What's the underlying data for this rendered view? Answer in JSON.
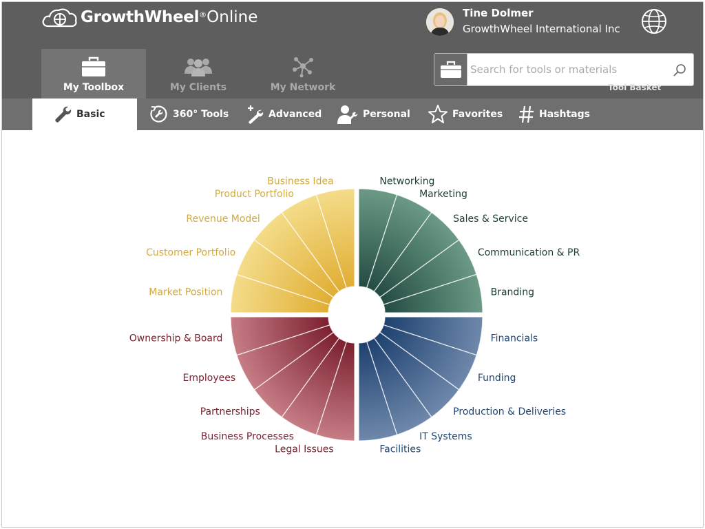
{
  "app": {
    "logo_brand": "GrowthWheel",
    "logo_reg": "®",
    "logo_suffix": "Online"
  },
  "user": {
    "name": "Tine Dolmer",
    "organization": "GrowthWheel International Inc"
  },
  "main_tabs": [
    {
      "label": "My Toolbox",
      "icon": "briefcase-icon",
      "active": true
    },
    {
      "label": "My Clients",
      "icon": "clients-icon",
      "active": false
    },
    {
      "label": "My Network",
      "icon": "network-icon",
      "active": false
    }
  ],
  "search": {
    "placeholder": "Search for tools or materials",
    "value": "",
    "basket_label": "Tool Basket"
  },
  "sub_tabs": [
    {
      "label": "Basic",
      "icon": "wrench-icon",
      "active": true
    },
    {
      "label": "360° Tools",
      "icon": "tools-360-icon",
      "active": false
    },
    {
      "label": "Advanced",
      "icon": "advanced-tools-icon",
      "active": false
    },
    {
      "label": "Personal",
      "icon": "personal-icon",
      "active": false
    },
    {
      "label": "Favorites",
      "icon": "star-icon",
      "active": false
    },
    {
      "label": "Hashtags",
      "icon": "hashtag-icon",
      "active": false
    }
  ],
  "wheel": {
    "quadrants": [
      {
        "name": "yellow",
        "color": "#e3b43c",
        "segments": [
          "Market Position",
          "Customer Portfolio",
          "Revenue Model",
          "Product Portfolio",
          "Business Idea"
        ]
      },
      {
        "name": "green",
        "color": "#3d6c5c",
        "segments": [
          "Networking",
          "Marketing",
          "Sales & Service",
          "Communication & PR",
          "Branding"
        ]
      },
      {
        "name": "blue",
        "color": "#2a4f7e",
        "segments": [
          "Financials",
          "Funding",
          "Production & Deliveries",
          "IT Systems",
          "Facilities"
        ]
      },
      {
        "name": "red",
        "color": "#8a2a37",
        "segments": [
          "Legal Issues",
          "Business Processes",
          "Partnerships",
          "Employees",
          "Ownership & Board"
        ]
      }
    ]
  }
}
